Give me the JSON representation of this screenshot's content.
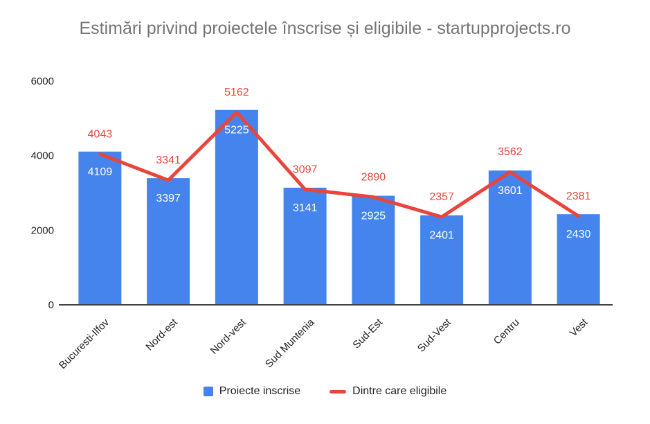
{
  "chart_data": {
    "type": "combo",
    "title": "Estimări privind proiectele înscrise și eligibile - startupprojects.ro",
    "categories": [
      "Bucuresti-Ilfov",
      "Nord-est",
      "Nord-vest",
      "Sud Muntenia",
      "Sud-Est",
      "Sud-Vest",
      "Centru",
      "Vest"
    ],
    "series": [
      {
        "name": "Proiecte inscrise",
        "kind": "bar",
        "color": "#4584EC",
        "label_color": "#ffffff",
        "values": [
          4109,
          3397,
          5225,
          3141,
          2925,
          2401,
          3601,
          2430
        ]
      },
      {
        "name": "Dintre care eligibile",
        "kind": "line",
        "color": "#E8453C",
        "label_color": "#E8453C",
        "values": [
          4043,
          3341,
          5162,
          3097,
          2890,
          2357,
          3562,
          2381
        ]
      }
    ],
    "ylim": [
      0,
      6000
    ],
    "yticks": [
      0,
      2000,
      4000,
      6000
    ],
    "grid": false,
    "legend_position": "bottom",
    "axis_text_color": "#202124",
    "baseline_color": "#424242",
    "title_color": "#757575"
  }
}
